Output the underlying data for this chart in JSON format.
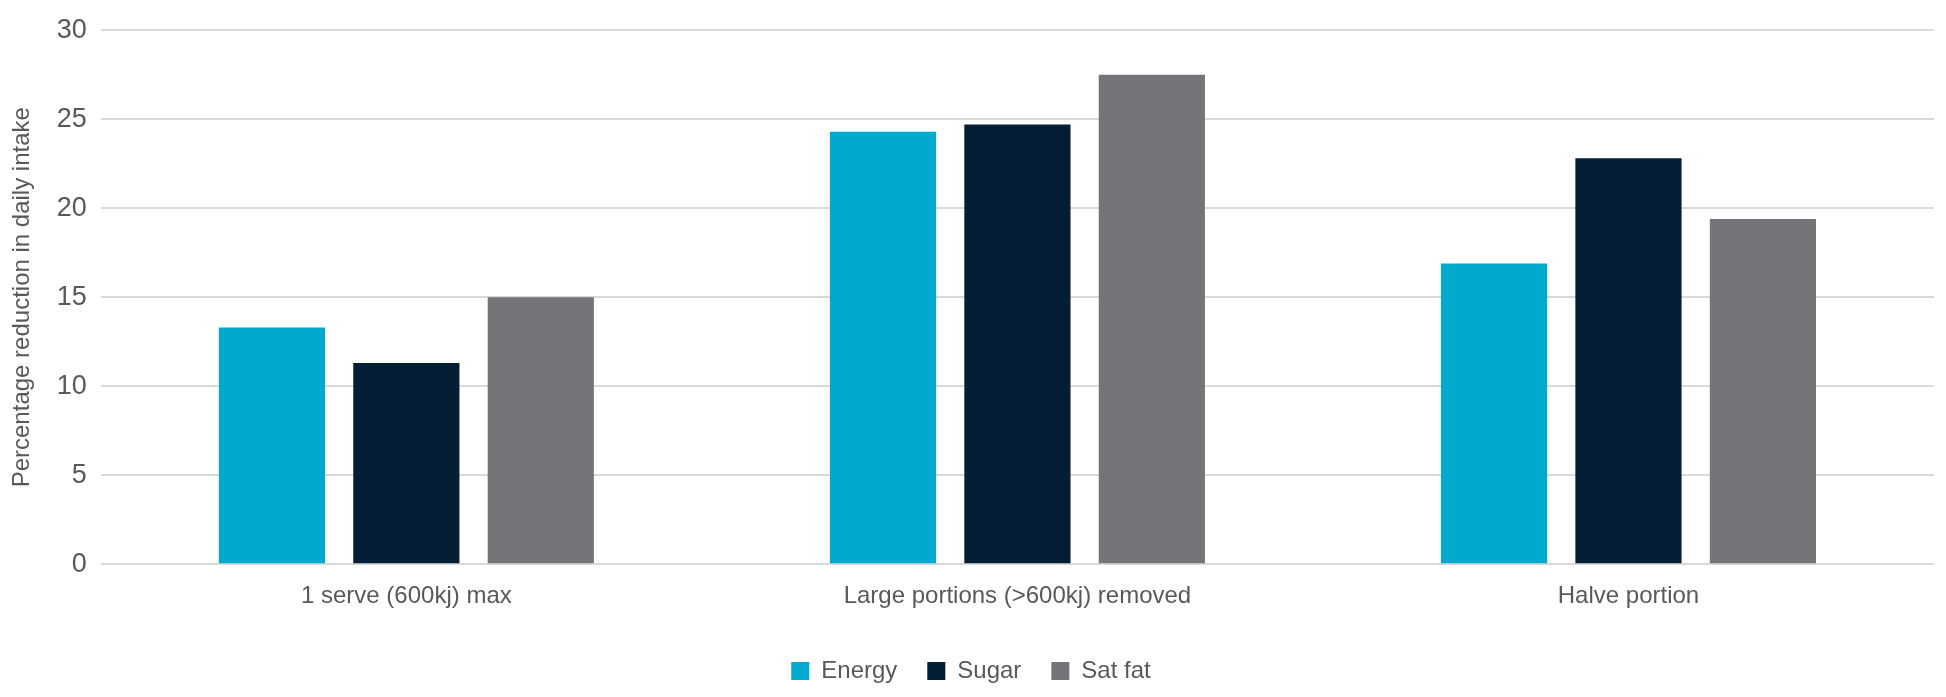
{
  "chart_data": {
    "type": "bar",
    "ylabel": "Percentage reduction in daily intake",
    "categories": [
      "1 serve (600kj) max",
      "Large portions (>600kj) removed",
      "Halve portion"
    ],
    "series": [
      {
        "name": "Energy",
        "color": "#00a9ce",
        "values": [
          13.3,
          24.3,
          16.9
        ]
      },
      {
        "name": "Sugar",
        "color": "#031e35",
        "values": [
          11.3,
          24.7,
          22.8
        ]
      },
      {
        "name": "Sat fat",
        "color": "#757479",
        "values": [
          15.0,
          27.5,
          19.4
        ]
      }
    ],
    "ylim": [
      0,
      30
    ],
    "yticks": [
      0,
      5,
      10,
      15,
      20,
      25,
      30
    ],
    "grid": "y",
    "legend": "bottom"
  }
}
